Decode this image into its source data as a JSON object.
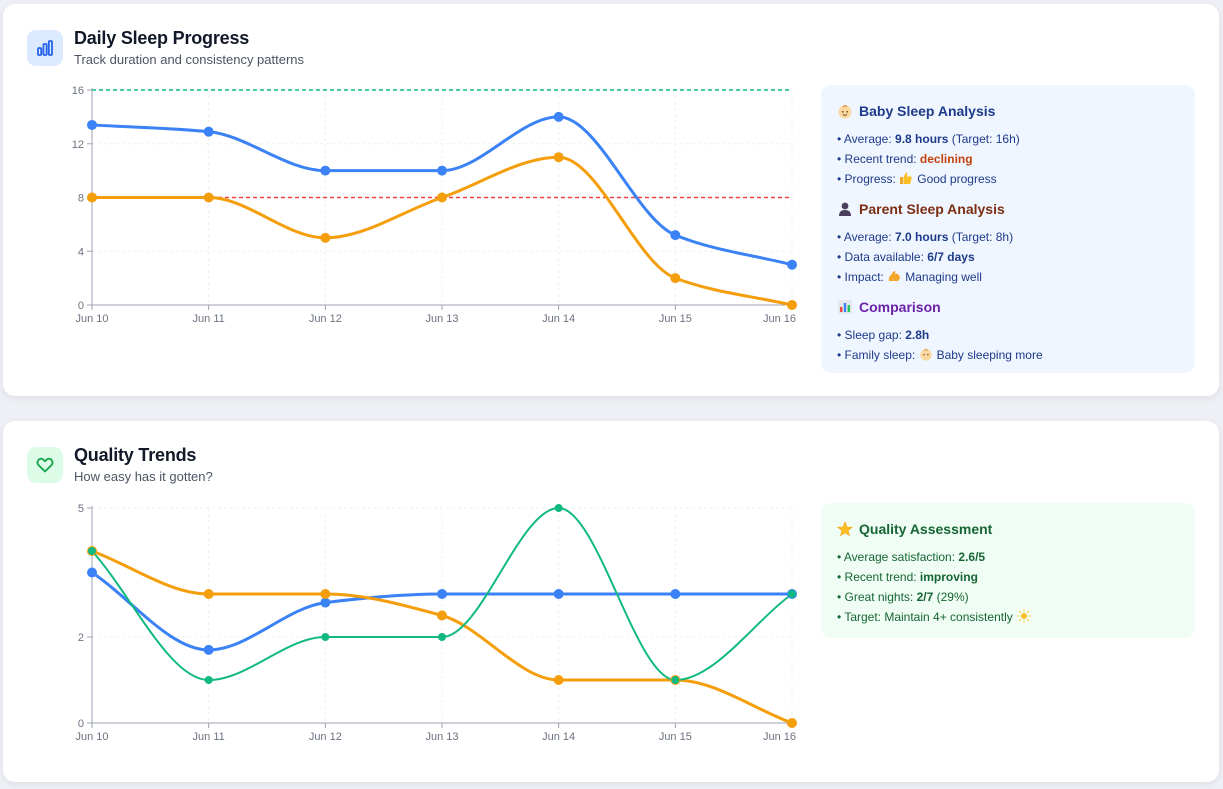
{
  "sleep_card": {
    "title": "Daily Sleep Progress",
    "subtitle": "Track duration and consistency patterns",
    "analysis": {
      "baby_title": "Baby Sleep Analysis",
      "baby_avg_label": "• Average: ",
      "baby_avg_value": "9.8 hours",
      "baby_avg_target": " (Target: 16h)",
      "baby_trend_label": "• Recent trend: ",
      "baby_trend_value": "declining",
      "baby_progress_label": "• Progress: ",
      "baby_progress_value": "Good progress",
      "parent_title": "Parent Sleep Analysis",
      "parent_avg_label": "• Average: ",
      "parent_avg_value": "7.0 hours",
      "parent_avg_target": " (Target: 8h)",
      "parent_data_label": "• Data available: ",
      "parent_data_value": "6/7 days",
      "parent_impact_label": "• Impact: ",
      "parent_impact_value": "Managing well",
      "comparison_title": "Comparison",
      "gap_label": "• Sleep gap: ",
      "gap_value": "2.8h",
      "family_label": "• Family sleep: ",
      "family_value": "Baby sleeping more"
    }
  },
  "quality_card": {
    "title": "Quality Trends",
    "subtitle": "How easy has it gotten?",
    "assessment": {
      "title": "Quality Assessment",
      "avg_label": "• Average satisfaction: ",
      "avg_value": "2.6/5",
      "trend_label": "• Recent trend: ",
      "trend_value": "improving",
      "great_label": "• Great nights: ",
      "great_value": "2/7",
      "great_pct": " (29%)",
      "target_text": "• Target: Maintain 4+ consistently"
    }
  },
  "colors": {
    "blue": "#3b82f6",
    "orange": "#f59e0b",
    "green": "#10b981",
    "target_green": "#10b981",
    "target_red": "#ef4444",
    "trend_declining": "#c2410c"
  },
  "icons": {
    "sleep_card": "bar-chart-icon",
    "quality_card": "heart-icon",
    "baby": "baby-face-emoji",
    "parent": "person-silhouette-emoji",
    "comparison": "bar-chart-emoji",
    "progress": "thumbs-up-emoji",
    "impact": "flexed-biceps-emoji",
    "quality": "star-emoji",
    "target": "sun-emoji"
  },
  "chart_data": [
    {
      "type": "line",
      "categories": [
        "Jun 10",
        "Jun 11",
        "Jun 12",
        "Jun 13",
        "Jun 14",
        "Jun 15",
        "Jun 16"
      ],
      "ylim": [
        0,
        16
      ],
      "yticks": [
        0,
        4,
        8,
        12,
        16
      ],
      "grid": true,
      "series": [
        {
          "values": [
            13.4,
            12.9,
            10,
            10,
            14,
            5.2,
            3
          ],
          "color": "#3b82f6"
        },
        {
          "values": [
            8,
            8,
            5,
            8,
            11,
            2,
            0
          ],
          "color": "#f59e0b"
        }
      ],
      "reference_lines": [
        {
          "value": 16,
          "color": "#10b981",
          "style": "dashed"
        },
        {
          "value": 8,
          "color": "#ef4444",
          "style": "dashed"
        }
      ]
    },
    {
      "type": "line",
      "categories": [
        "Jun 10",
        "Jun 11",
        "Jun 12",
        "Jun 13",
        "Jun 14",
        "Jun 15",
        "Jun 16"
      ],
      "ylim": [
        0,
        5
      ],
      "yticks": [
        0,
        2,
        5
      ],
      "grid": true,
      "series": [
        {
          "values": [
            3.5,
            1.7,
            2.8,
            3,
            3,
            3,
            3
          ],
          "color": "#3b82f6"
        },
        {
          "values": [
            4,
            3,
            3,
            2.5,
            1,
            1,
            0
          ],
          "color": "#f59e0b"
        },
        {
          "values": [
            4,
            1,
            2,
            2,
            5,
            1,
            3
          ],
          "color": "#10b981"
        }
      ]
    }
  ]
}
